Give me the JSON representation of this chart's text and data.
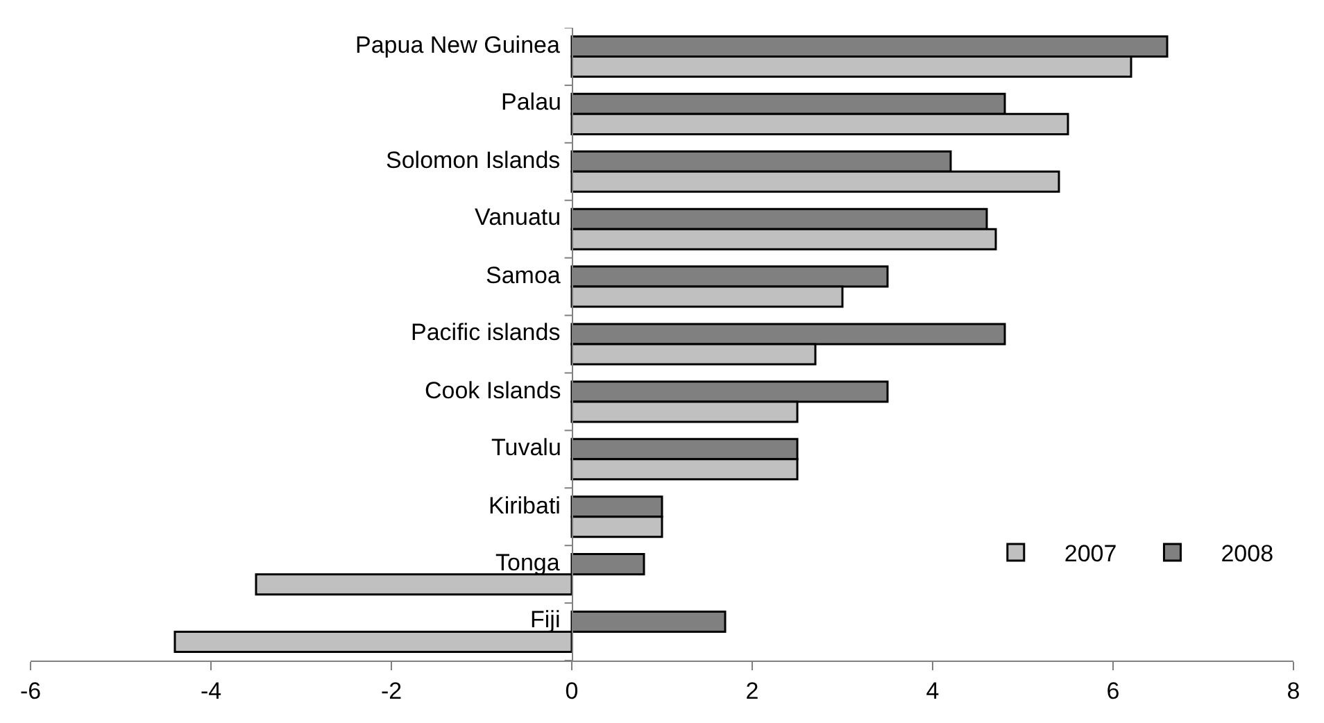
{
  "chart_data": {
    "type": "bar",
    "orientation": "horizontal",
    "categories": [
      "Papua New Guinea",
      "Palau",
      "Solomon Islands",
      "Vanuatu",
      "Samoa",
      "Pacific islands",
      "Cook Islands",
      "Tuvalu",
      "Kiribati",
      "Tonga",
      "Fiji"
    ],
    "series": [
      {
        "name": "2007",
        "color": "#c0c0c0",
        "values": [
          6.2,
          5.5,
          5.4,
          4.7,
          3.0,
          2.7,
          2.5,
          2.5,
          1.0,
          -3.5,
          -4.4
        ]
      },
      {
        "name": "2008",
        "color": "#808080",
        "values": [
          6.6,
          4.8,
          4.2,
          4.6,
          3.5,
          4.8,
          3.5,
          2.5,
          1.0,
          0.8,
          1.7
        ]
      }
    ],
    "xlim": [
      -6,
      8
    ],
    "xticks": [
      -6,
      -4,
      -2,
      0,
      2,
      4,
      6,
      8
    ],
    "legend": "bottom right"
  }
}
